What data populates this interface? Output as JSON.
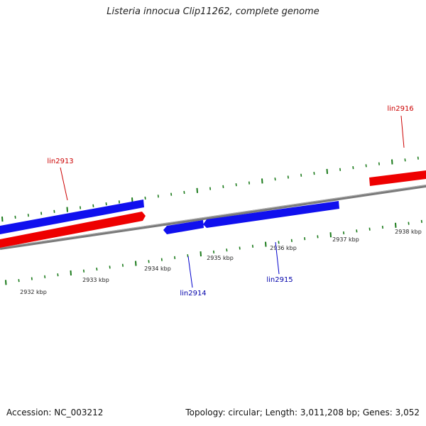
{
  "title": "Listeria innocua Clip11262, complete genome",
  "footer": {
    "accession": "Accession: NC_003212",
    "summary": "Topology: circular; Length: 3,011,208 bp; Genes: 3,052"
  },
  "colors": {
    "forward_gene": "#ee0000",
    "reverse_gene": "#1010ee",
    "tick": "#1a7a1a",
    "backbone": "#777777"
  },
  "ticks": [
    {
      "label": "2932 kbp"
    },
    {
      "label": "2933 kbp"
    },
    {
      "label": "2934 kbp"
    },
    {
      "label": "2935 kbp"
    },
    {
      "label": "2936 kbp"
    },
    {
      "label": "2937 kbp"
    },
    {
      "label": "2938 kbp"
    }
  ],
  "genes": [
    {
      "label": "lin2913",
      "strand": "reverse"
    },
    {
      "label": "lin2913",
      "strand": "forward"
    },
    {
      "label": "lin2914",
      "strand": "reverse"
    },
    {
      "label": "lin2915",
      "strand": "reverse"
    },
    {
      "label": "lin2916",
      "strand": "forward"
    }
  ],
  "gene_labels": [
    {
      "text": "lin2913",
      "strand": "forward"
    },
    {
      "text": "lin2914",
      "strand": "reverse"
    },
    {
      "text": "lin2915",
      "strand": "reverse"
    },
    {
      "text": "lin2916",
      "strand": "forward"
    }
  ]
}
